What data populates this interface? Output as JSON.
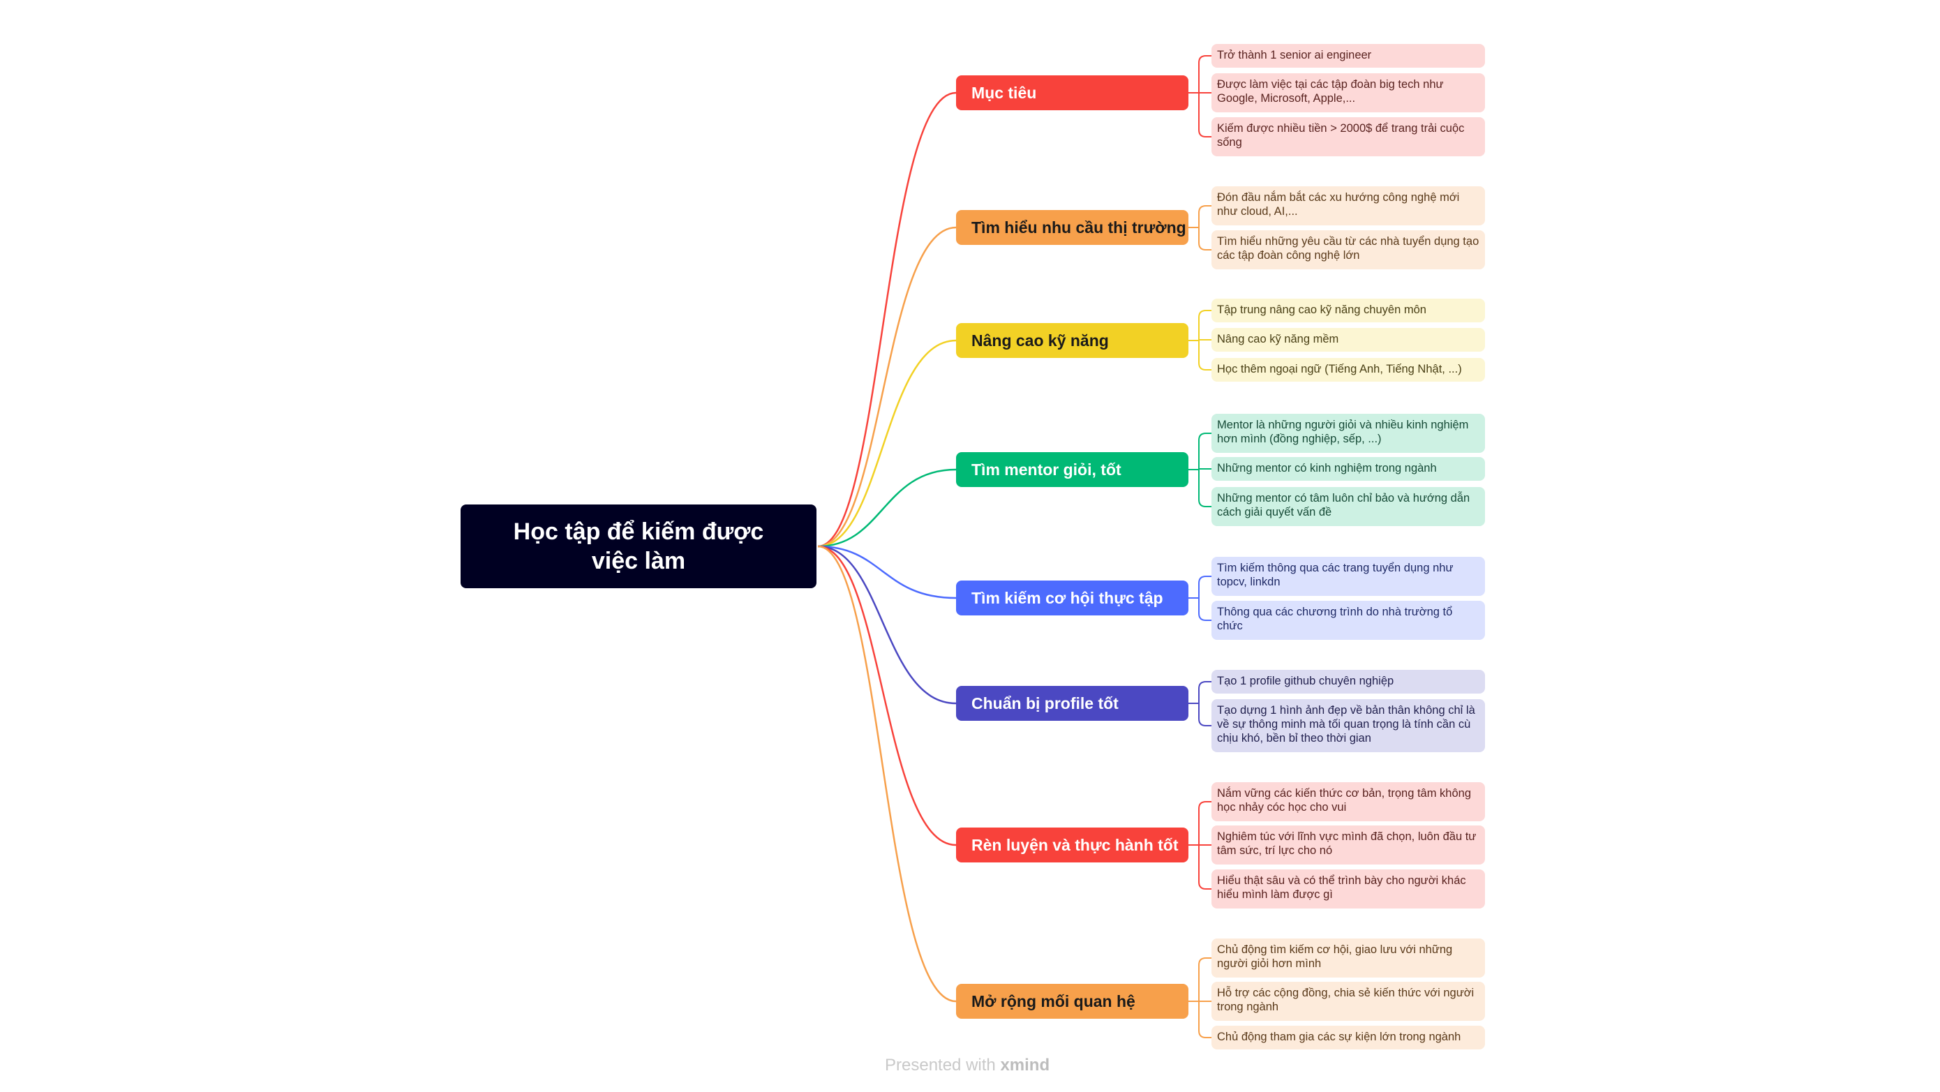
{
  "root": {
    "title": "Học tập để kiếm được việc làm"
  },
  "footer": {
    "prefix": "Presented with",
    "brand": "xmind"
  },
  "branches": [
    {
      "label": "Mục tiêu",
      "color": "#f8423b",
      "text_color": "#ffffff",
      "leaf_bg": "#fdd9d8",
      "leaf_text": "#5a2320",
      "children": [
        "Trở thành 1 senior ai engineer",
        "Được làm việc tại các tập đoàn big tech như Google, Microsoft, Apple,...",
        "Kiếm được nhiều tiền > 2000$ để trang trải cuộc sống"
      ]
    },
    {
      "label": "Tìm hiểu nhu cầu thị trường",
      "color": "#f7a04b",
      "text_color": "#1a1a1a",
      "leaf_bg": "#fdebdb",
      "leaf_text": "#5a3a1a",
      "children": [
        "Đón đầu nắm bắt các xu hướng công nghệ mới như cloud, AI,...",
        "Tìm hiểu những yêu cầu từ các nhà tuyển dụng tạo các tập đoàn công nghệ lớn"
      ]
    },
    {
      "label": "Nâng cao kỹ năng",
      "color": "#f2d125",
      "text_color": "#1a1a1a",
      "leaf_bg": "#fcf6d3",
      "leaf_text": "#4a4015",
      "children": [
        "Tập trung nâng cao kỹ năng chuyên môn",
        "Nâng cao kỹ năng mềm",
        "Học thêm ngoại ngữ (Tiếng Anh, Tiếng Nhật, ...)"
      ]
    },
    {
      "label": "Tìm mentor giỏi, tốt",
      "color": "#00b975",
      "text_color": "#ffffff",
      "leaf_bg": "#cdf1e3",
      "leaf_text": "#154a36",
      "children": [
        "Mentor là những người giỏi và nhiều kinh nghiệm hơn mình (đồng nghiệp, sếp, ...)",
        "Những mentor có kinh nghiệm trong ngành",
        "Những mentor có tâm luôn chỉ bảo và hướng dẫn cách giải quyết vấn đề"
      ]
    },
    {
      "label": "Tìm kiếm cơ hội thực tập",
      "color": "#4d6bfe",
      "text_color": "#ffffff",
      "leaf_bg": "#dbe1fe",
      "leaf_text": "#1f2a66",
      "children": [
        "Tìm kiếm thông qua các trang tuyển dụng như topcv, linkdn",
        "Thông qua các chương trình do nhà trường tổ chức"
      ]
    },
    {
      "label": "Chuẩn bị profile tốt",
      "color": "#4b48c2",
      "text_color": "#ffffff",
      "leaf_bg": "#dcdcf2",
      "leaf_text": "#22214f",
      "children": [
        "Tạo 1 profile github chuyên nghiệp",
        "Tạo dựng 1 hình ảnh đẹp về bản thân không chỉ là về sự thông minh mà tối quan trọng là tính cần cù chịu khó, bền bỉ theo thời gian"
      ]
    },
    {
      "label": "Rèn luyện và thực hành tốt",
      "color": "#f8423b",
      "text_color": "#ffffff",
      "leaf_bg": "#fdd9d8",
      "leaf_text": "#5a2320",
      "children": [
        "Nắm vững các kiến thức cơ bản, trọng tâm không học nhảy cóc học cho vui",
        "Nghiêm túc với lĩnh vực mình đã chọn, luôn đầu tư tâm sức, trí lực cho nó",
        "Hiểu thật sâu và có thể trình bày cho người khác hiểu mình làm được gì"
      ]
    },
    {
      "label": "Mở rộng mối quan hệ",
      "color": "#f7a04b",
      "text_color": "#1a1a1a",
      "leaf_bg": "#fdebdb",
      "leaf_text": "#5a3a1a",
      "children": [
        "Chủ động tìm kiếm cơ hội, giao lưu với những người giỏi hơn mình",
        "Hỗ trợ các cộng đồng, chia sẻ kiến thức với người trong ngành",
        "Chủ động tham gia các sự kiện lớn trong ngành"
      ]
    }
  ]
}
